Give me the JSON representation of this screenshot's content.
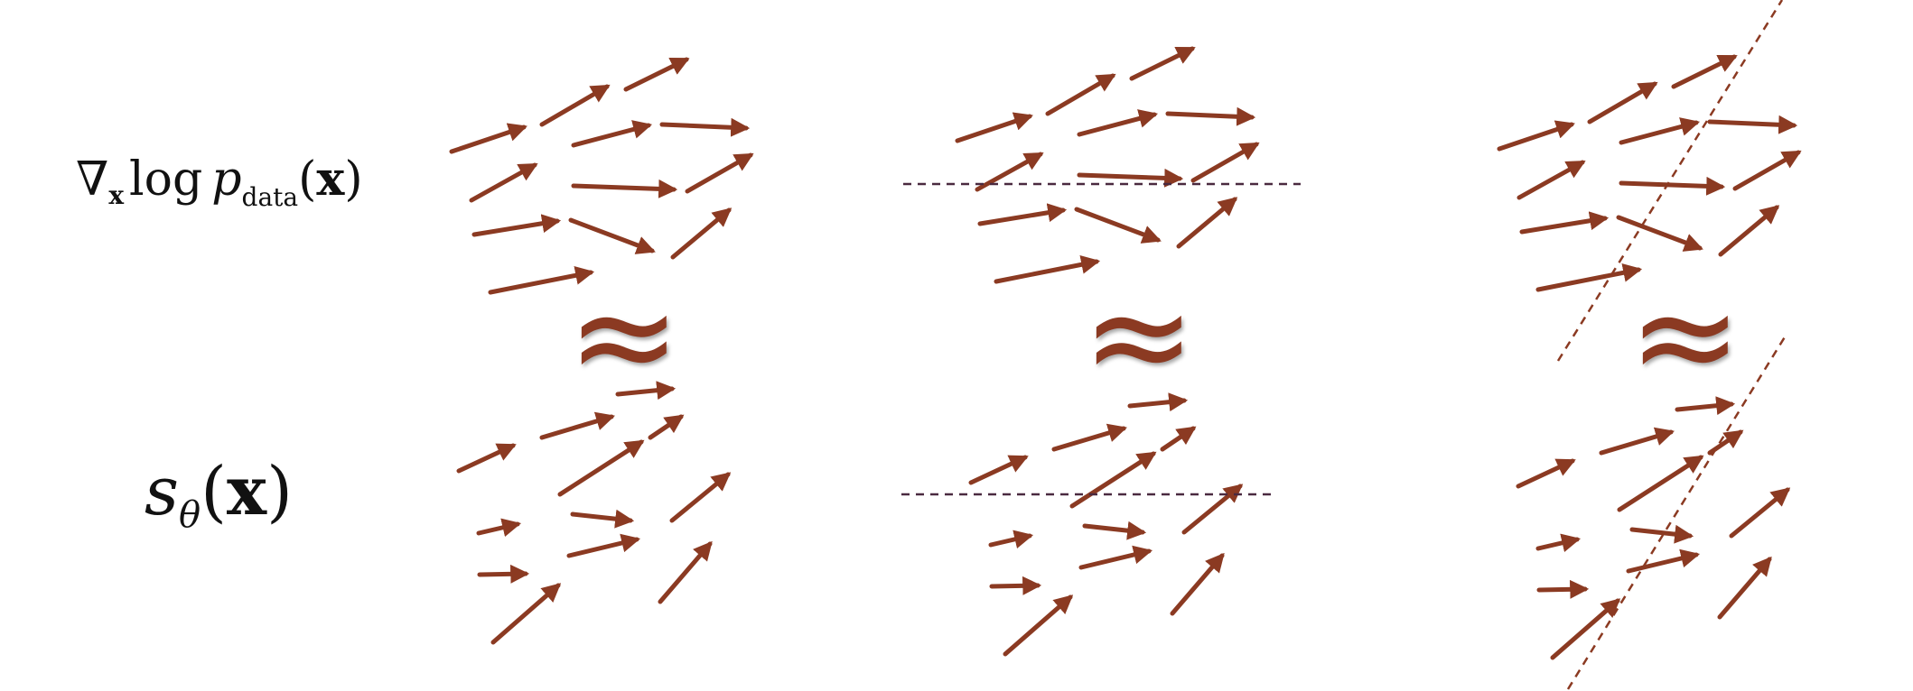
{
  "labels": {
    "top": {
      "nabla": "∇",
      "sub": "x",
      "log": "log",
      "p": "p",
      "sub_data": "data",
      "open": "(",
      "x": "x",
      "close": ")"
    },
    "bottom": {
      "s": "s",
      "theta": "θ",
      "open": "(",
      "x": "x",
      "close": ")"
    }
  },
  "approx_symbol": "≈",
  "colors": {
    "arrow": "#8b3a22",
    "dashed_line_horizontal": "#4a2a40",
    "dashed_line_diagonal": "#8b3a22"
  },
  "panels": [
    {
      "name": "panel-1",
      "divider": "none"
    },
    {
      "name": "panel-2",
      "divider": "horizontal-dashed"
    },
    {
      "name": "panel-3",
      "divider": "diagonal-dashed"
    }
  ]
}
